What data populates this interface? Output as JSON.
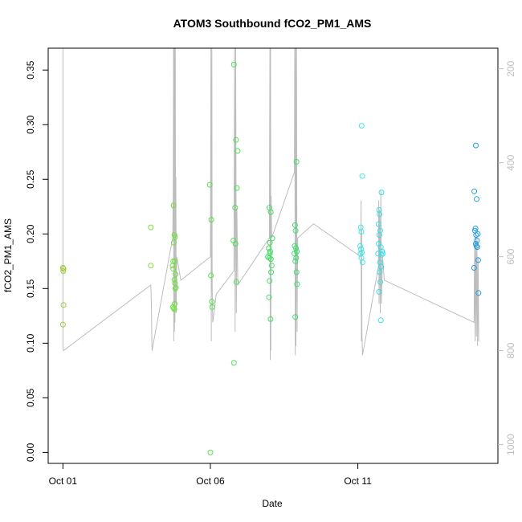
{
  "chart_data": {
    "type": "scatter",
    "title": "ATOM3 Southbound fCO2_PM1_AMS",
    "xlabel": "Date",
    "ylabel": "fCO2_PM1_AMS",
    "xlim": [
      -0.5,
      14.75
    ],
    "ylim": [
      -0.01,
      0.37
    ],
    "y2lim": [
      1040,
      156
    ],
    "x_ticks": [
      {
        "value": 0,
        "label": "Oct 01"
      },
      {
        "value": 5,
        "label": "Oct 06"
      },
      {
        "value": 10,
        "label": "Oct 11"
      }
    ],
    "y_ticks": [
      {
        "value": 0.0,
        "label": "0.00"
      },
      {
        "value": 0.05,
        "label": "0.05"
      },
      {
        "value": 0.1,
        "label": "0.10"
      },
      {
        "value": 0.15,
        "label": "0.15"
      },
      {
        "value": 0.2,
        "label": "0.20"
      },
      {
        "value": 0.25,
        "label": "0.25"
      },
      {
        "value": 0.3,
        "label": "0.30"
      },
      {
        "value": 0.35,
        "label": "0.35"
      }
    ],
    "y2_ticks": [
      {
        "value": 200,
        "label": "200"
      },
      {
        "value": 400,
        "label": "400"
      },
      {
        "value": 600,
        "label": "600"
      },
      {
        "value": 800,
        "label": "800"
      },
      {
        "value": 1000,
        "label": "1000"
      }
    ],
    "colors": {
      "points_start": "#9acd32",
      "points_mid": "#32e06a",
      "points_late": "#3de8e8",
      "points_end": "#1f8fe0",
      "profile_line": "#bdbdbd",
      "axis": "#000000"
    },
    "points": [
      {
        "x": 0.0,
        "y": 0.169,
        "color": "#9acd32"
      },
      {
        "x": 0.01,
        "y": 0.166,
        "color": "#9acd32"
      },
      {
        "x": 0.02,
        "y": 0.168,
        "color": "#9acd32"
      },
      {
        "x": 0.02,
        "y": 0.135,
        "color": "#9acd32"
      },
      {
        "x": 0.0,
        "y": 0.117,
        "color": "#9acd32"
      },
      {
        "x": 2.98,
        "y": 0.206,
        "color": "#7ee03c"
      },
      {
        "x": 2.98,
        "y": 0.171,
        "color": "#7ee03c"
      },
      {
        "x": 3.75,
        "y": 0.226,
        "color": "#6fe040"
      },
      {
        "x": 3.78,
        "y": 0.199,
        "color": "#6fe040"
      },
      {
        "x": 3.8,
        "y": 0.197,
        "color": "#6fe040"
      },
      {
        "x": 3.76,
        "y": 0.192,
        "color": "#6fe040"
      },
      {
        "x": 3.74,
        "y": 0.175,
        "color": "#6fe040"
      },
      {
        "x": 3.79,
        "y": 0.175,
        "color": "#6fe040"
      },
      {
        "x": 3.72,
        "y": 0.171,
        "color": "#6fe040"
      },
      {
        "x": 3.74,
        "y": 0.168,
        "color": "#6fe040"
      },
      {
        "x": 3.82,
        "y": 0.163,
        "color": "#6fe040"
      },
      {
        "x": 3.78,
        "y": 0.158,
        "color": "#6fe040"
      },
      {
        "x": 3.8,
        "y": 0.155,
        "color": "#6fe040"
      },
      {
        "x": 3.83,
        "y": 0.151,
        "color": "#6fe040"
      },
      {
        "x": 3.81,
        "y": 0.15,
        "color": "#6fe040"
      },
      {
        "x": 3.79,
        "y": 0.136,
        "color": "#6fe040"
      },
      {
        "x": 3.73,
        "y": 0.133,
        "color": "#6fe040"
      },
      {
        "x": 3.76,
        "y": 0.132,
        "color": "#6fe040"
      },
      {
        "x": 3.78,
        "y": 0.131,
        "color": "#6fe040"
      },
      {
        "x": 4.98,
        "y": 0.245,
        "color": "#5ae04c"
      },
      {
        "x": 5.03,
        "y": 0.213,
        "color": "#5ae04c"
      },
      {
        "x": 5.02,
        "y": 0.162,
        "color": "#5ae04c"
      },
      {
        "x": 5.05,
        "y": 0.138,
        "color": "#5ae04c"
      },
      {
        "x": 5.06,
        "y": 0.133,
        "color": "#5ae04c"
      },
      {
        "x": 5.0,
        "y": 0.0,
        "color": "#5ae04c"
      },
      {
        "x": 5.8,
        "y": 0.355,
        "color": "#4fe055"
      },
      {
        "x": 5.87,
        "y": 0.286,
        "color": "#4fe055"
      },
      {
        "x": 5.92,
        "y": 0.276,
        "color": "#4fe055"
      },
      {
        "x": 5.9,
        "y": 0.242,
        "color": "#4fe055"
      },
      {
        "x": 5.84,
        "y": 0.224,
        "color": "#4fe055"
      },
      {
        "x": 5.78,
        "y": 0.194,
        "color": "#4fe055"
      },
      {
        "x": 5.85,
        "y": 0.191,
        "color": "#4fe055"
      },
      {
        "x": 5.88,
        "y": 0.156,
        "color": "#4fe055"
      },
      {
        "x": 5.8,
        "y": 0.082,
        "color": "#4fe055"
      },
      {
        "x": 7.0,
        "y": 0.224,
        "color": "#40e060"
      },
      {
        "x": 7.05,
        "y": 0.22,
        "color": "#40e060"
      },
      {
        "x": 7.02,
        "y": 0.192,
        "color": "#40e060"
      },
      {
        "x": 6.98,
        "y": 0.187,
        "color": "#40e060"
      },
      {
        "x": 7.03,
        "y": 0.184,
        "color": "#40e060"
      },
      {
        "x": 6.95,
        "y": 0.179,
        "color": "#40e060"
      },
      {
        "x": 7.0,
        "y": 0.178,
        "color": "#40e060"
      },
      {
        "x": 7.05,
        "y": 0.177,
        "color": "#40e060"
      },
      {
        "x": 7.08,
        "y": 0.171,
        "color": "#40e060"
      },
      {
        "x": 7.06,
        "y": 0.165,
        "color": "#40e060"
      },
      {
        "x": 7.01,
        "y": 0.157,
        "color": "#40e060"
      },
      {
        "x": 6.99,
        "y": 0.142,
        "color": "#40e060"
      },
      {
        "x": 7.04,
        "y": 0.122,
        "color": "#40e060"
      },
      {
        "x": 7.02,
        "y": 0.182,
        "color": "#40e060"
      },
      {
        "x": 7.1,
        "y": 0.196,
        "color": "#40e060"
      },
      {
        "x": 7.87,
        "y": 0.208,
        "color": "#38e068"
      },
      {
        "x": 7.92,
        "y": 0.266,
        "color": "#38e068"
      },
      {
        "x": 7.89,
        "y": 0.203,
        "color": "#38e068"
      },
      {
        "x": 7.86,
        "y": 0.189,
        "color": "#38e068"
      },
      {
        "x": 7.9,
        "y": 0.187,
        "color": "#38e068"
      },
      {
        "x": 7.93,
        "y": 0.184,
        "color": "#38e068"
      },
      {
        "x": 7.85,
        "y": 0.182,
        "color": "#38e068"
      },
      {
        "x": 7.91,
        "y": 0.178,
        "color": "#38e068"
      },
      {
        "x": 7.88,
        "y": 0.175,
        "color": "#38e068"
      },
      {
        "x": 7.92,
        "y": 0.165,
        "color": "#38e068"
      },
      {
        "x": 7.94,
        "y": 0.154,
        "color": "#38e068"
      },
      {
        "x": 7.88,
        "y": 0.124,
        "color": "#38e068"
      },
      {
        "x": 10.13,
        "y": 0.299,
        "color": "#3de8e8"
      },
      {
        "x": 10.15,
        "y": 0.253,
        "color": "#3de8e8"
      },
      {
        "x": 10.1,
        "y": 0.206,
        "color": "#3de8e8"
      },
      {
        "x": 10.12,
        "y": 0.202,
        "color": "#3de8e8"
      },
      {
        "x": 10.08,
        "y": 0.189,
        "color": "#3de8e8"
      },
      {
        "x": 10.11,
        "y": 0.186,
        "color": "#3de8e8"
      },
      {
        "x": 10.14,
        "y": 0.183,
        "color": "#3de8e8"
      },
      {
        "x": 10.09,
        "y": 0.182,
        "color": "#3de8e8"
      },
      {
        "x": 10.12,
        "y": 0.178,
        "color": "#3de8e8"
      },
      {
        "x": 10.16,
        "y": 0.174,
        "color": "#3de8e8"
      },
      {
        "x": 10.8,
        "y": 0.238,
        "color": "#3adde8"
      },
      {
        "x": 10.72,
        "y": 0.222,
        "color": "#3adde8"
      },
      {
        "x": 10.74,
        "y": 0.218,
        "color": "#3adde8"
      },
      {
        "x": 10.7,
        "y": 0.209,
        "color": "#3adde8"
      },
      {
        "x": 10.76,
        "y": 0.203,
        "color": "#3adde8"
      },
      {
        "x": 10.73,
        "y": 0.199,
        "color": "#3adde8"
      },
      {
        "x": 10.71,
        "y": 0.191,
        "color": "#3adde8"
      },
      {
        "x": 10.78,
        "y": 0.188,
        "color": "#3adde8"
      },
      {
        "x": 10.82,
        "y": 0.184,
        "color": "#3adde8"
      },
      {
        "x": 10.85,
        "y": 0.182,
        "color": "#3adde8"
      },
      {
        "x": 10.8,
        "y": 0.181,
        "color": "#3adde8"
      },
      {
        "x": 10.69,
        "y": 0.182,
        "color": "#3adde8"
      },
      {
        "x": 10.75,
        "y": 0.174,
        "color": "#3adde8"
      },
      {
        "x": 10.79,
        "y": 0.17,
        "color": "#3adde8"
      },
      {
        "x": 10.74,
        "y": 0.165,
        "color": "#3adde8"
      },
      {
        "x": 10.76,
        "y": 0.156,
        "color": "#3adde8"
      },
      {
        "x": 10.72,
        "y": 0.147,
        "color": "#3adde8"
      },
      {
        "x": 10.78,
        "y": 0.121,
        "color": "#3adde8"
      },
      {
        "x": 14.0,
        "y": 0.281,
        "color": "#1f9fe0"
      },
      {
        "x": 13.95,
        "y": 0.239,
        "color": "#1f9fe0"
      },
      {
        "x": 14.03,
        "y": 0.232,
        "color": "#1f9fe0"
      },
      {
        "x": 13.99,
        "y": 0.205,
        "color": "#1f9fe0"
      },
      {
        "x": 13.97,
        "y": 0.203,
        "color": "#1f9fe0"
      },
      {
        "x": 14.07,
        "y": 0.2,
        "color": "#1f9fe0"
      },
      {
        "x": 14.01,
        "y": 0.199,
        "color": "#1f9fe0"
      },
      {
        "x": 14.04,
        "y": 0.194,
        "color": "#1f9fe0"
      },
      {
        "x": 14.0,
        "y": 0.191,
        "color": "#1f9fe0"
      },
      {
        "x": 14.02,
        "y": 0.189,
        "color": "#1f9fe0"
      },
      {
        "x": 14.05,
        "y": 0.188,
        "color": "#1f9fe0"
      },
      {
        "x": 14.08,
        "y": 0.176,
        "color": "#1f9fe0"
      },
      {
        "x": 13.94,
        "y": 0.169,
        "color": "#1f9fe0"
      },
      {
        "x": 14.09,
        "y": 0.146,
        "color": "#1f9fe0"
      }
    ],
    "profile_line": [
      [
        0.0,
        156
      ],
      [
        0.0,
        795
      ],
      [
        0.02,
        800
      ],
      [
        2.98,
        660
      ],
      [
        3.0,
        700
      ],
      [
        3.02,
        800
      ],
      [
        3.72,
        560
      ],
      [
        3.74,
        470
      ],
      [
        3.75,
        156
      ],
      [
        3.76,
        780
      ],
      [
        3.77,
        156
      ],
      [
        3.78,
        760
      ],
      [
        3.79,
        156
      ],
      [
        3.8,
        740
      ],
      [
        3.81,
        156
      ],
      [
        3.82,
        700
      ],
      [
        3.83,
        430
      ],
      [
        3.84,
        720
      ],
      [
        3.86,
        600
      ],
      [
        4.0,
        650
      ],
      [
        5.0,
        600
      ],
      [
        5.02,
        156
      ],
      [
        5.03,
        780
      ],
      [
        5.05,
        156
      ],
      [
        5.06,
        660
      ],
      [
        5.08,
        740
      ],
      [
        5.2,
        680
      ],
      [
        5.8,
        630
      ],
      [
        5.82,
        156
      ],
      [
        5.84,
        760
      ],
      [
        5.86,
        156
      ],
      [
        5.88,
        720
      ],
      [
        5.9,
        500
      ],
      [
        5.93,
        660
      ],
      [
        7.0,
        560
      ],
      [
        7.02,
        156
      ],
      [
        7.03,
        820
      ],
      [
        7.04,
        156
      ],
      [
        7.05,
        800
      ],
      [
        7.06,
        470
      ],
      [
        7.08,
        560
      ],
      [
        7.85,
        420
      ],
      [
        7.86,
        156
      ],
      [
        7.88,
        810
      ],
      [
        7.89,
        156
      ],
      [
        7.9,
        790
      ],
      [
        7.92,
        156
      ],
      [
        7.94,
        760
      ],
      [
        7.96,
        560
      ],
      [
        8.5,
        530
      ],
      [
        10.1,
        600
      ],
      [
        10.11,
        480
      ],
      [
        10.12,
        780
      ],
      [
        10.13,
        540
      ],
      [
        10.14,
        760
      ],
      [
        10.16,
        810
      ],
      [
        10.7,
        620
      ],
      [
        10.71,
        480
      ],
      [
        10.72,
        700
      ],
      [
        10.74,
        500
      ],
      [
        10.76,
        720
      ],
      [
        10.78,
        460
      ],
      [
        10.8,
        700
      ],
      [
        10.84,
        600
      ],
      [
        10.9,
        650
      ],
      [
        13.94,
        740
      ],
      [
        13.96,
        560
      ],
      [
        13.98,
        780
      ],
      [
        14.0,
        540
      ],
      [
        14.02,
        770
      ],
      [
        14.04,
        560
      ],
      [
        14.06,
        790
      ],
      [
        14.08,
        600
      ],
      [
        14.1,
        780
      ]
    ]
  }
}
